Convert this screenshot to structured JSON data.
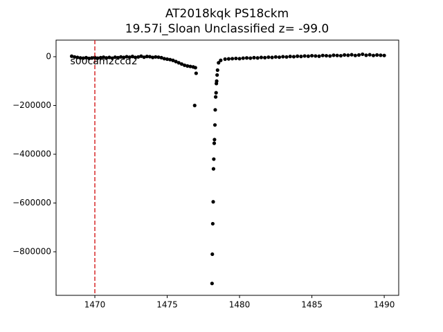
{
  "chart_data": {
    "type": "scatter",
    "title": "AT2018kqk  PS18ckm\n19.57i_Sloan Unclassified z= -99.0",
    "annotation": {
      "text": "s00cam2ccd2",
      "x": 1468.3,
      "y": -20000
    },
    "vline": {
      "x": 1470,
      "color": "#d62728",
      "dashed": true
    },
    "color": "#000000",
    "x": [
      1468.4,
      1468.6,
      1468.8,
      1469.0,
      1469.2,
      1469.4,
      1469.6,
      1469.8,
      1470.0,
      1470.2,
      1470.4,
      1470.6,
      1470.8,
      1471.0,
      1471.2,
      1471.4,
      1471.6,
      1471.8,
      1472.0,
      1472.2,
      1472.4,
      1472.6,
      1472.8,
      1473.0,
      1473.2,
      1473.4,
      1473.6,
      1473.8,
      1474.0,
      1474.2,
      1474.4,
      1474.6,
      1474.8,
      1475.0,
      1475.2,
      1475.4,
      1475.6,
      1475.8,
      1476.0,
      1476.2,
      1476.4,
      1476.6,
      1476.8,
      1476.9,
      1476.95,
      1477.0,
      1478.1,
      1478.12,
      1478.15,
      1478.18,
      1478.2,
      1478.22,
      1478.25,
      1478.27,
      1478.3,
      1478.32,
      1478.35,
      1478.38,
      1478.4,
      1478.42,
      1478.45,
      1478.48,
      1478.55,
      1478.7,
      1479.0,
      1479.25,
      1479.5,
      1479.75,
      1480.0,
      1480.25,
      1480.5,
      1480.75,
      1481.0,
      1481.25,
      1481.5,
      1481.75,
      1482.0,
      1482.25,
      1482.5,
      1482.75,
      1483.0,
      1483.25,
      1483.5,
      1483.75,
      1484.0,
      1484.25,
      1484.5,
      1484.75,
      1485.0,
      1485.25,
      1485.5,
      1485.75,
      1486.0,
      1486.25,
      1486.5,
      1486.75,
      1487.0,
      1487.25,
      1487.5,
      1487.75,
      1488.0,
      1488.25,
      1488.5,
      1488.75,
      1489.0,
      1489.25,
      1489.5,
      1489.75,
      1490.0
    ],
    "values": [
      2000,
      -1000,
      -3000,
      -5000,
      -6000,
      -4000,
      -7000,
      -5000,
      -3000,
      -6000,
      -4000,
      -2000,
      -5000,
      -3000,
      -6000,
      -2000,
      -4000,
      -1000,
      -3000,
      0,
      -2000,
      1000,
      -3000,
      -1000,
      2000,
      -2000,
      1000,
      0,
      -3000,
      -1000,
      -2000,
      -4000,
      -8000,
      -10000,
      -12000,
      -15000,
      -20000,
      -25000,
      -30000,
      -35000,
      -38000,
      -40000,
      -42000,
      -200000,
      -45000,
      -68000,
      -930000,
      -810000,
      -685000,
      -595000,
      -460000,
      -420000,
      -355000,
      -340000,
      -280000,
      -218000,
      -165000,
      -148000,
      -110000,
      -100000,
      -75000,
      -55000,
      -25000,
      -15000,
      -10000,
      -9000,
      -8000,
      -7000,
      -8000,
      -6000,
      -5000,
      -6000,
      -4000,
      -5000,
      -3000,
      -4000,
      -2000,
      -3000,
      -1000,
      -2000,
      0,
      -1000,
      1000,
      0,
      2000,
      1000,
      3000,
      2000,
      4000,
      3000,
      2000,
      5000,
      4000,
      3000,
      6000,
      5000,
      4000,
      7000,
      6000,
      8000,
      5000,
      7000,
      10000,
      6000,
      8000,
      5000,
      7000,
      6000,
      5000
    ],
    "xlim": [
      1467.32,
      1491.0
    ],
    "ylim": [
      -978700,
      68000
    ],
    "xticks": [
      1470,
      1475,
      1480,
      1485,
      1490
    ],
    "yticks": [
      0,
      {
        "value": -200000,
        "label": "−200000"
      },
      {
        "value": -400000,
        "label": "−400000"
      },
      {
        "value": -600000,
        "label": "−600000"
      },
      {
        "value": -800000,
        "label": "−800000"
      }
    ]
  }
}
